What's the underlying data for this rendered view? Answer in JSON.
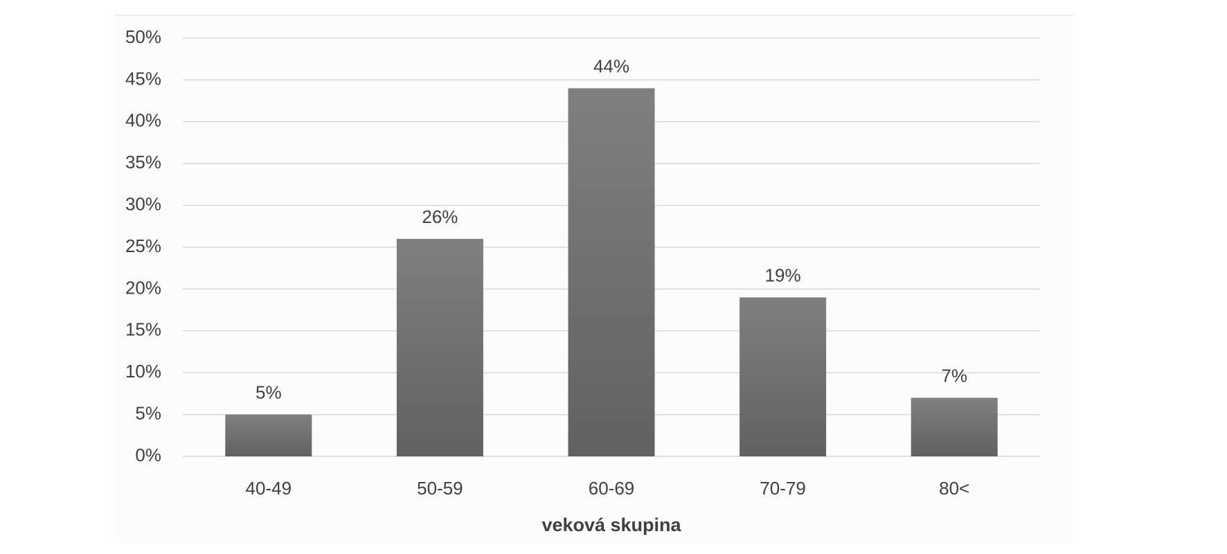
{
  "chart_data": {
    "type": "bar",
    "x_label": "veková skupina",
    "categories": [
      "40-49",
      "50-59",
      "60-69",
      "70-79",
      "80<"
    ],
    "values": [
      5,
      26,
      44,
      19,
      7
    ],
    "value_labels": [
      "5%",
      "26%",
      "44%",
      "19%",
      "7%"
    ],
    "color": "#6e6e6e",
    "ylim": [
      0,
      50
    ],
    "yticks": [
      {
        "value": 0,
        "label": "0%"
      },
      {
        "value": 5,
        "label": "5%"
      },
      {
        "value": 10,
        "label": "10%"
      },
      {
        "value": 15,
        "label": "15%"
      },
      {
        "value": 20,
        "label": "20%"
      },
      {
        "value": 25,
        "label": "25%"
      },
      {
        "value": 30,
        "label": "30%"
      },
      {
        "value": 35,
        "label": "35%"
      },
      {
        "value": 40,
        "label": "40%"
      },
      {
        "value": 45,
        "label": "45%"
      },
      {
        "value": 50,
        "label": "50%"
      }
    ],
    "grid": true
  }
}
